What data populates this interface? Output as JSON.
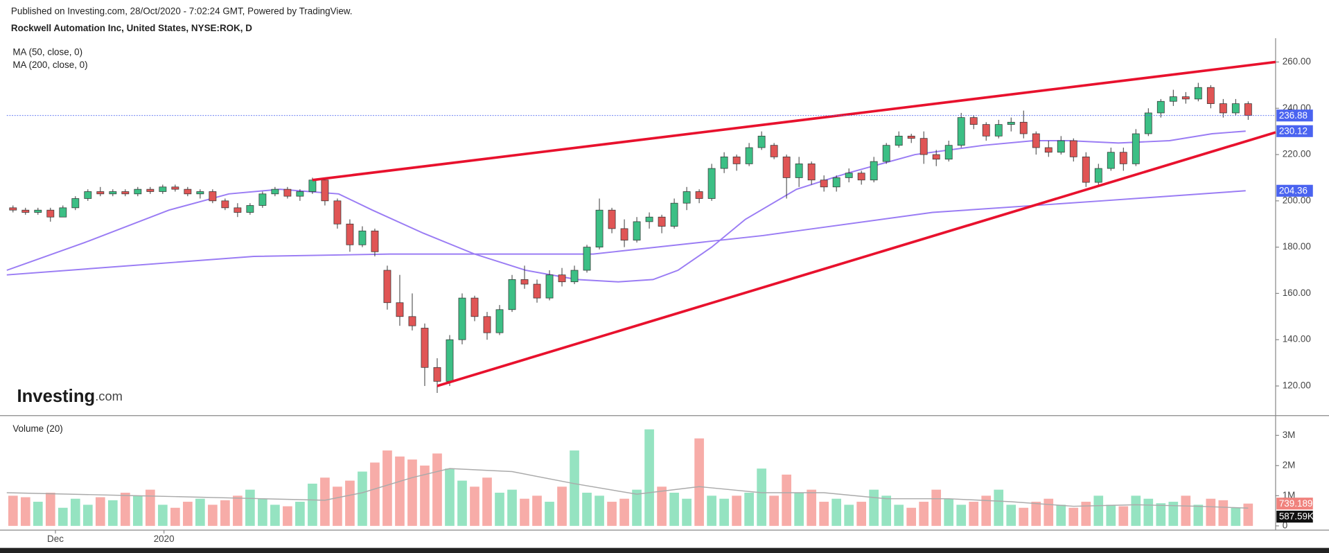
{
  "header": {
    "published": "Published on Investing.com, 28/Oct/2020 - 7:02:24 GMT, Powered by TradingView.",
    "instrument": "Rockwell Automation Inc, United States, NYSE:ROK, D"
  },
  "logo": {
    "brand": "Investing",
    "suffix": ".com"
  },
  "chart_data": [
    {
      "type": "candlestick",
      "up_color": "#3cbf85",
      "down_color": "#e05555",
      "ohlc": [
        [
          197,
          198,
          195,
          196
        ],
        [
          196,
          197,
          194,
          195
        ],
        [
          195,
          197,
          194,
          196
        ],
        [
          196,
          197,
          191,
          193
        ],
        [
          193,
          198,
          193,
          197
        ],
        [
          197,
          202,
          196,
          201
        ],
        [
          201,
          205,
          200,
          204
        ],
        [
          204,
          206,
          202,
          203
        ],
        [
          203,
          205,
          202,
          204
        ],
        [
          204,
          205,
          202,
          203
        ],
        [
          203,
          206,
          202,
          205
        ],
        [
          205,
          206,
          203,
          204
        ],
        [
          204,
          207,
          203,
          206
        ],
        [
          206,
          207,
          204,
          205
        ],
        [
          205,
          206,
          202,
          203
        ],
        [
          203,
          205,
          201,
          204
        ],
        [
          204,
          205,
          199,
          200
        ],
        [
          200,
          201,
          196,
          197
        ],
        [
          197,
          199,
          193,
          195
        ],
        [
          195,
          199,
          194,
          198
        ],
        [
          198,
          204,
          197,
          203
        ],
        [
          203,
          206,
          202,
          205
        ],
        [
          205,
          206,
          201,
          202
        ],
        [
          202,
          205,
          200,
          204
        ],
        [
          204,
          210,
          203,
          209
        ],
        [
          209,
          209,
          198,
          200
        ],
        [
          200,
          201,
          188,
          190
        ],
        [
          190,
          192,
          178,
          181
        ],
        [
          181,
          189,
          180,
          187
        ],
        [
          187,
          188,
          176,
          178
        ],
        [
          170,
          172,
          153,
          156
        ],
        [
          156,
          168,
          146,
          150
        ],
        [
          150,
          160,
          144,
          146
        ],
        [
          145,
          147,
          120,
          128
        ],
        [
          128,
          132,
          117,
          122
        ],
        [
          122,
          142,
          120,
          140
        ],
        [
          140,
          160,
          138,
          158
        ],
        [
          158,
          159,
          148,
          150
        ],
        [
          150,
          152,
          140,
          143
        ],
        [
          143,
          155,
          142,
          153
        ],
        [
          153,
          168,
          152,
          166
        ],
        [
          166,
          172,
          162,
          164
        ],
        [
          164,
          166,
          156,
          158
        ],
        [
          158,
          170,
          157,
          168
        ],
        [
          168,
          171,
          163,
          165
        ],
        [
          165,
          172,
          164,
          170
        ],
        [
          170,
          181,
          169,
          180
        ],
        [
          180,
          201,
          179,
          196
        ],
        [
          196,
          197,
          186,
          188
        ],
        [
          188,
          192,
          180,
          183
        ],
        [
          183,
          193,
          182,
          191
        ],
        [
          191,
          195,
          188,
          193
        ],
        [
          193,
          194,
          186,
          189
        ],
        [
          189,
          201,
          188,
          199
        ],
        [
          199,
          206,
          196,
          204
        ],
        [
          204,
          205,
          199,
          201
        ],
        [
          201,
          216,
          200,
          214
        ],
        [
          214,
          221,
          212,
          219
        ],
        [
          219,
          220,
          213,
          216
        ],
        [
          216,
          225,
          215,
          223
        ],
        [
          223,
          230,
          222,
          228
        ],
        [
          224,
          225,
          218,
          219
        ],
        [
          219,
          220,
          201,
          210
        ],
        [
          210,
          219,
          206,
          216
        ],
        [
          216,
          217,
          207,
          209
        ],
        [
          209,
          211,
          204,
          206
        ],
        [
          206,
          211,
          204,
          210
        ],
        [
          210,
          214,
          208,
          212
        ],
        [
          212,
          213,
          207,
          209
        ],
        [
          209,
          219,
          208,
          217
        ],
        [
          217,
          225,
          216,
          224
        ],
        [
          224,
          230,
          223,
          228
        ],
        [
          228,
          229,
          225,
          227
        ],
        [
          227,
          230,
          216,
          220
        ],
        [
          220,
          222,
          215,
          218
        ],
        [
          218,
          226,
          217,
          224
        ],
        [
          224,
          238,
          223,
          236
        ],
        [
          236,
          237,
          231,
          233
        ],
        [
          233,
          234,
          226,
          228
        ],
        [
          228,
          235,
          227,
          233
        ],
        [
          233,
          236,
          230,
          234
        ],
        [
          234,
          239,
          227,
          229
        ],
        [
          229,
          230,
          220,
          223
        ],
        [
          223,
          226,
          219,
          221
        ],
        [
          221,
          228,
          220,
          226
        ],
        [
          226,
          227,
          217,
          219
        ],
        [
          219,
          221,
          206,
          208
        ],
        [
          208,
          216,
          207,
          214
        ],
        [
          214,
          223,
          213,
          221
        ],
        [
          221,
          223,
          213,
          216
        ],
        [
          216,
          231,
          215,
          229
        ],
        [
          229,
          240,
          228,
          238
        ],
        [
          238,
          244,
          236,
          243
        ],
        [
          243,
          248,
          241,
          245
        ],
        [
          245,
          247,
          242,
          244
        ],
        [
          244,
          251,
          243,
          249
        ],
        [
          249,
          250,
          240,
          242
        ],
        [
          242,
          244,
          236,
          238
        ],
        [
          238,
          244,
          237,
          242
        ],
        [
          242,
          243,
          235,
          236.88
        ]
      ],
      "xlim": [
        -0.5,
        101.2
      ],
      "xticks": [
        {
          "value": 3.4,
          "label": "Dec"
        },
        {
          "value": 12.1,
          "label": "2020"
        }
      ],
      "ylim": [
        107.2,
        270.3
      ],
      "yticks": [
        {
          "value": 120,
          "label": "120.00"
        },
        {
          "value": 140,
          "label": "140.00"
        },
        {
          "value": 160,
          "label": "160.00"
        },
        {
          "value": 180,
          "label": "180.00"
        },
        {
          "value": 200,
          "label": "200.00"
        },
        {
          "value": 220,
          "label": "220.00"
        },
        {
          "value": 240,
          "label": "240.00"
        },
        {
          "value": 260,
          "label": "260.00"
        }
      ],
      "price_line_color": "#4a63f0",
      "series": [
        {
          "name": "MA (50, close, 0)",
          "color": "#9a7cf4",
          "x": [
            -0.5,
            5.75,
            12.5,
            17.3,
            21.4,
            26.1,
            28.8,
            32.9,
            37,
            41.1,
            45.2,
            48.5,
            51.3,
            53.3,
            56,
            58.7,
            62.8,
            66.9,
            72.3,
            77.8,
            81.8,
            84.6,
            88.6,
            92.7,
            96.1,
            98.8
          ],
          "values": [
            170,
            182,
            196,
            203,
            205,
            203,
            196,
            186,
            177,
            170,
            166,
            165,
            166,
            170,
            180,
            192,
            205,
            212,
            220,
            224,
            226,
            226,
            225,
            226,
            229,
            230.12
          ]
        },
        {
          "name": "MA (200, close, 0)",
          "color": "#9a7cf4",
          "x": [
            -0.5,
            19.3,
            30.2,
            46.5,
            60.1,
            73.7,
            87.3,
            98.8
          ],
          "values": [
            168,
            176,
            177,
            177,
            185,
            195,
            200,
            204.36
          ]
        }
      ],
      "trendlines": [
        {
          "color": "#e8112d",
          "x": [
            24,
            101.2
          ],
          "values": [
            209,
            260
          ]
        },
        {
          "color": "#e8112d",
          "x": [
            34,
            101.2
          ],
          "values": [
            120,
            229.6
          ]
        }
      ]
    },
    {
      "type": "bar",
      "title": "Volume (20)",
      "up_color": "#95e3c1",
      "down_color": "#f7aca8",
      "values": [
        1000000,
        950000,
        800000,
        1100000,
        600000,
        900000,
        700000,
        950000,
        850000,
        1100000,
        1000000,
        1200000,
        700000,
        600000,
        800000,
        900000,
        700000,
        850000,
        1000000,
        1200000,
        900000,
        700000,
        650000,
        800000,
        1400000,
        1600000,
        1300000,
        1500000,
        1800000,
        2100000,
        2500000,
        2300000,
        2200000,
        2000000,
        2400000,
        1900000,
        1500000,
        1300000,
        1600000,
        1100000,
        1200000,
        900000,
        1000000,
        800000,
        1300000,
        2500000,
        1100000,
        1000000,
        800000,
        900000,
        1200000,
        3200000,
        1300000,
        1100000,
        900000,
        2900000,
        1000000,
        900000,
        1000000,
        1100000,
        1900000,
        1000000,
        1700000,
        1100000,
        1200000,
        800000,
        900000,
        700000,
        800000,
        1200000,
        1000000,
        700000,
        600000,
        800000,
        1200000,
        900000,
        700000,
        800000,
        1000000,
        1200000,
        700000,
        600000,
        800000,
        900000,
        700000,
        600000,
        800000,
        1000000,
        700000,
        650000,
        1000000,
        900000,
        750000,
        800000,
        1000000,
        700000,
        900000,
        850000,
        600000,
        739189
      ],
      "last_label": "739.189K",
      "last_color": "#f0827d",
      "ylim": [
        -140000,
        3600000
      ],
      "yticks": [
        0,
        {
          "value": 1000000,
          "label": "1M"
        },
        {
          "value": 2000000,
          "label": "2M"
        },
        {
          "value": 3000000,
          "label": "3M"
        }
      ],
      "series": [
        {
          "color": "#aaaaaa",
          "x": [
            -0.5,
            10,
            20,
            25,
            28,
            32,
            35,
            40,
            45,
            50,
            55,
            60,
            65,
            70,
            75,
            80,
            85,
            90,
            95,
            99
          ],
          "values": [
            1100000,
            1000000,
            900000,
            850000,
            1100000,
            1600000,
            1900000,
            1800000,
            1400000,
            1050000,
            1300000,
            1100000,
            1100000,
            900000,
            900000,
            800000,
            650000,
            700000,
            650000,
            587590
          ],
          "last_label": "587.59K",
          "last_color": "#111111"
        }
      ]
    }
  ]
}
